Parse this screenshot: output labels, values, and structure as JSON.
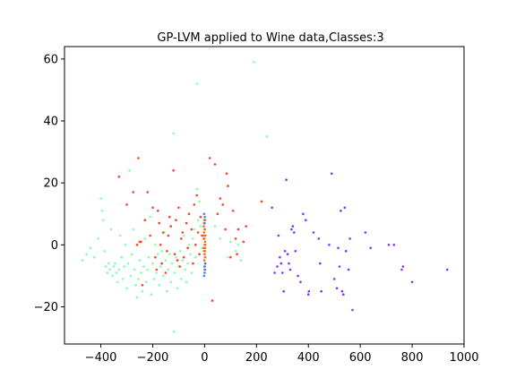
{
  "chart_data": {
    "type": "scatter",
    "title": "GP-LVM applied to Wine data,Classes:3",
    "xlabel": "",
    "ylabel": "",
    "xlim": [
      -540,
      1000
    ],
    "ylim": [
      -32,
      64
    ],
    "xticks": [
      -400,
      -200,
      0,
      200,
      400,
      600,
      800,
      1000
    ],
    "yticks": [
      -20,
      0,
      20,
      40,
      60
    ],
    "xtick_labels": [
      "−400",
      "−200",
      "0",
      "200",
      "400",
      "600",
      "800",
      "1000"
    ],
    "ytick_labels": [
      "−20",
      "0",
      "20",
      "40",
      "60"
    ],
    "grid": false,
    "legend": "none",
    "series": [
      {
        "color": "#80ffb4",
        "points": [
          [
            -470,
            -5
          ],
          [
            -455,
            -3
          ],
          [
            -440,
            -1
          ],
          [
            -425,
            -4
          ],
          [
            -410,
            2
          ],
          [
            -400,
            15
          ],
          [
            -395,
            11
          ],
          [
            -390,
            8
          ],
          [
            -385,
            -2
          ],
          [
            -380,
            -7
          ],
          [
            -375,
            -9
          ],
          [
            -370,
            -6
          ],
          [
            -365,
            -8
          ],
          [
            -360,
            5
          ],
          [
            -355,
            -10
          ],
          [
            -350,
            -7
          ],
          [
            -345,
            -6
          ],
          [
            -340,
            -9
          ],
          [
            -335,
            -12
          ],
          [
            -330,
            -8
          ],
          [
            -325,
            3
          ],
          [
            -320,
            -4
          ],
          [
            -315,
            -11
          ],
          [
            -310,
            -7
          ],
          [
            -305,
            0
          ],
          [
            -300,
            -14
          ],
          [
            -295,
            -6
          ],
          [
            -290,
            24
          ],
          [
            -285,
            -10
          ],
          [
            -280,
            -3
          ],
          [
            -275,
            5
          ],
          [
            -270,
            -8
          ],
          [
            -265,
            -13
          ],
          [
            -260,
            -17
          ],
          [
            -255,
            -11
          ],
          [
            -250,
            -5
          ],
          [
            -245,
            -9
          ],
          [
            -240,
            -15
          ],
          [
            -235,
            -7
          ],
          [
            -230,
            2
          ],
          [
            -225,
            -12
          ],
          [
            -220,
            -8
          ],
          [
            -215,
            -4
          ],
          [
            -210,
            9
          ],
          [
            -205,
            -16
          ],
          [
            -200,
            -6
          ],
          [
            -195,
            -11
          ],
          [
            -190,
            0
          ],
          [
            -185,
            -9
          ],
          [
            -180,
            -3
          ],
          [
            -175,
            -13
          ],
          [
            -170,
            -7
          ],
          [
            -165,
            -2
          ],
          [
            -160,
            -10
          ],
          [
            -155,
            4
          ],
          [
            -150,
            -5
          ],
          [
            -145,
            -15
          ],
          [
            -140,
            -8
          ],
          [
            -135,
            -3
          ],
          [
            -130,
            -12
          ],
          [
            -125,
            -6
          ],
          [
            -120,
            36
          ],
          [
            -118,
            -28
          ],
          [
            -115,
            -9
          ],
          [
            -110,
            -4
          ],
          [
            -105,
            -14
          ],
          [
            -100,
            -7
          ],
          [
            -95,
            -2
          ],
          [
            -90,
            -11
          ],
          [
            -85,
            -5
          ],
          [
            -80,
            3
          ],
          [
            -75,
            -8
          ],
          [
            -70,
            -12
          ],
          [
            -65,
            -6
          ],
          [
            -60,
            0
          ],
          [
            -55,
            -3
          ],
          [
            -50,
            -9
          ],
          [
            -45,
            2
          ],
          [
            -40,
            5
          ],
          [
            -35,
            -4
          ],
          [
            -30,
            18
          ],
          [
            -28,
            52
          ],
          [
            -25,
            8
          ],
          [
            -20,
            14
          ],
          [
            -15,
            6
          ],
          [
            -10,
            -1
          ],
          [
            -5,
            3
          ],
          [
            40,
            6
          ],
          [
            60,
            2
          ],
          [
            90,
            -4
          ],
          [
            100,
            1
          ],
          [
            120,
            -2
          ],
          [
            130,
            0
          ],
          [
            140,
            -5
          ],
          [
            190,
            59
          ],
          [
            240,
            35
          ]
        ]
      },
      {
        "color": "#ff3d20",
        "points": [
          [
            -330,
            22
          ],
          [
            -300,
            13
          ],
          [
            -275,
            17
          ],
          [
            -260,
            0
          ],
          [
            -255,
            28
          ],
          [
            -250,
            1
          ],
          [
            -245,
            1
          ],
          [
            -240,
            -13
          ],
          [
            -230,
            8
          ],
          [
            -220,
            17
          ],
          [
            -210,
            3
          ],
          [
            -200,
            12
          ],
          [
            -190,
            -4
          ],
          [
            -185,
            -8
          ],
          [
            -180,
            11
          ],
          [
            -175,
            7
          ],
          [
            -170,
            0
          ],
          [
            -165,
            -6
          ],
          [
            -160,
            4
          ],
          [
            -150,
            -9
          ],
          [
            -145,
            -2
          ],
          [
            -140,
            3
          ],
          [
            -135,
            9
          ],
          [
            -130,
            6
          ],
          [
            -120,
            24
          ],
          [
            -115,
            -3
          ],
          [
            -110,
            8
          ],
          [
            -105,
            -5
          ],
          [
            -100,
            12
          ],
          [
            -95,
            -7
          ],
          [
            -90,
            2
          ],
          [
            -85,
            4
          ],
          [
            -80,
            -4
          ],
          [
            -70,
            7
          ],
          [
            -65,
            -1
          ],
          [
            -60,
            10
          ],
          [
            -50,
            5
          ],
          [
            -45,
            -6
          ],
          [
            -40,
            13
          ],
          [
            -35,
            0
          ],
          [
            -30,
            16
          ],
          [
            -25,
            4
          ],
          [
            -20,
            -3
          ],
          [
            -15,
            9
          ],
          [
            -10,
            3
          ],
          [
            20,
            28
          ],
          [
            30,
            -18
          ],
          [
            40,
            26
          ],
          [
            50,
            10
          ],
          [
            60,
            15
          ],
          [
            70,
            13
          ],
          [
            80,
            5
          ],
          [
            85,
            23
          ],
          [
            90,
            19
          ],
          [
            100,
            -4
          ],
          [
            110,
            11
          ],
          [
            120,
            2
          ],
          [
            125,
            -3
          ],
          [
            130,
            5
          ],
          [
            150,
            1
          ],
          [
            160,
            6
          ],
          [
            220,
            14
          ]
        ]
      },
      {
        "color": "#8030ff",
        "points": [
          [
            260,
            12
          ],
          [
            270,
            -9
          ],
          [
            280,
            -7
          ],
          [
            285,
            3
          ],
          [
            290,
            -4
          ],
          [
            295,
            -6
          ],
          [
            300,
            -9
          ],
          [
            305,
            -15
          ],
          [
            310,
            -2
          ],
          [
            315,
            21
          ],
          [
            320,
            -3
          ],
          [
            325,
            -6
          ],
          [
            330,
            -8
          ],
          [
            335,
            5
          ],
          [
            340,
            6
          ],
          [
            345,
            4
          ],
          [
            350,
            -2
          ],
          [
            360,
            -10
          ],
          [
            370,
            -12
          ],
          [
            380,
            10
          ],
          [
            390,
            8
          ],
          [
            400,
            -16
          ],
          [
            402,
            -15
          ],
          [
            420,
            4
          ],
          [
            440,
            2
          ],
          [
            445,
            -6
          ],
          [
            450,
            -15
          ],
          [
            480,
            0
          ],
          [
            490,
            23
          ],
          [
            500,
            -11
          ],
          [
            510,
            -14
          ],
          [
            515,
            -1
          ],
          [
            520,
            -7
          ],
          [
            525,
            11
          ],
          [
            530,
            -15
          ],
          [
            535,
            -16
          ],
          [
            540,
            12
          ],
          [
            545,
            -2
          ],
          [
            555,
            -8
          ],
          [
            560,
            2
          ],
          [
            570,
            -21
          ],
          [
            620,
            4
          ],
          [
            640,
            -1
          ],
          [
            710,
            0
          ],
          [
            730,
            0
          ],
          [
            760,
            -8
          ],
          [
            765,
            -7
          ],
          [
            800,
            -12
          ],
          [
            935,
            -8
          ]
        ]
      },
      {
        "color": "#ff6a10",
        "points": [
          [
            -3,
            6
          ],
          [
            -2,
            4
          ],
          [
            -1,
            2
          ],
          [
            0,
            0
          ],
          [
            1,
            -2
          ],
          [
            2,
            -4
          ],
          [
            3,
            -6
          ],
          [
            -3,
            -1
          ],
          [
            3,
            3
          ],
          [
            0,
            5
          ],
          [
            -2,
            7
          ],
          [
            2,
            8
          ],
          [
            -1,
            -5
          ],
          [
            1,
            -7
          ],
          [
            0,
            -3
          ],
          [
            2,
            1
          ],
          [
            -2,
            -2
          ],
          [
            1,
            5
          ],
          [
            -1,
            8
          ],
          [
            0,
            -8
          ],
          [
            3,
            0
          ],
          [
            -3,
            2
          ],
          [
            2,
            -1
          ],
          [
            -2,
            3
          ]
        ]
      },
      {
        "color": "#2a8aff",
        "points": [
          [
            -2,
            -10
          ],
          [
            0,
            -9
          ],
          [
            2,
            -8
          ],
          [
            -1,
            -7
          ],
          [
            1,
            9
          ],
          [
            -2,
            10
          ],
          [
            0,
            7
          ],
          [
            2,
            -6
          ]
        ]
      }
    ]
  }
}
